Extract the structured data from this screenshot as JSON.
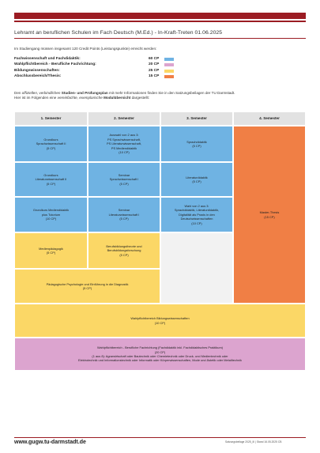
{
  "header": {
    "title": "Lehramt an beruflichen Schulen im Fach Deutsch (M.Ed.) - In-Kraft-Treten 01.06.2025"
  },
  "intro_text": "Im Studiengang müssen insgesamt 120 Credit Points (Leistungspunkte) erreicht werden:",
  "credits": [
    {
      "label": "Fachwissenschaft und Fachdidaktik:",
      "value": "60 CP",
      "color": "#6fb3e3"
    },
    {
      "label": "Wahlpflichtbereich - Berufliche Fachrichtung:",
      "value": "20 CP",
      "color": "#dca4cf"
    },
    {
      "label": "Bildungswissenschaften:",
      "value": "25 CP",
      "color": "#fbd766"
    },
    {
      "label": "Abschlussbereich/Thesis:",
      "value": "15 CP",
      "color": "#f07f45"
    }
  ],
  "note": {
    "p1": "Den ",
    "p2": "offiziellen, verbindlichen",
    "p3": " Studien- und Prüfungsplan",
    "p4": " mit mehr Informationen finden Sie in den Satzungsbeilagen der TU Darmstadt.",
    "p5": "Hier ist im Folgenden eine ",
    "p6": "vereinfachte, exemplarische",
    "p7": " Modulübersicht",
    "p8": " dargestellt:"
  },
  "semesters": [
    "1. Semester",
    "2. Semester",
    "3. Semester",
    "4. Semester"
  ],
  "cells": {
    "grundkurs_sprach": [
      "Grundkurs",
      "Sprachwissenschaft II",
      "(5 CP)"
    ],
    "auswahl": [
      "Auswahl von 2 aus 3:",
      "PS Sprachwissenschaft,",
      "PS Literaturwissenschaft,",
      "PS Mediendidaktik",
      "(10 CP)"
    ],
    "sprachdidaktik": [
      "Sprachdidaktik",
      "(5 CP)"
    ],
    "grundkurs_lit": [
      "Grundkurs",
      "Literaturwissenschaft II",
      "(5 CP)"
    ],
    "seminar_sprach": [
      "Seminar",
      "Sprachwissenschaft I",
      "(5 CP)"
    ],
    "literaturdidaktik": [
      "Literaturdidaktik",
      "(5 CP)"
    ],
    "grundkurs_medien": [
      "Grundkurs Mediendidaktik",
      "plus Tutorium",
      "(10 CP)"
    ],
    "seminar_lit": [
      "Seminar",
      "Literaturwissenschaft I",
      "(5 CP)"
    ],
    "wahl": [
      "Wahl von 2 aus 3:",
      "Sprachdidaktik, Literaturdidaktik,",
      "Digitalität als Praxis in den",
      "Deutschwissenschaften",
      "(10 CP)"
    ],
    "thesis": [
      "Master-Thesis",
      "(15 CP)"
    ],
    "medienpaedagogik": [
      "Medienpädagogik",
      "(5 CP)"
    ],
    "berufsbildung": [
      "Berufsbildungstheorie und",
      "Berufsbildungsforschung",
      "(5 CP)"
    ],
    "paed_psych": [
      "Pädagogische Psychologie und Einführung in die Diagnostik",
      "(5 CP)"
    ],
    "wahlpflicht_bildung": [
      "Wahlpflichtbereich Bildungswissenschaften",
      "(10 CP)"
    ],
    "wahlpflicht_beruf": [
      "Wahlpflichtbereich - Berufliche Fachrichtung (Fachdidaktik inkl. Fachdidaktisches Praktikum)",
      "(20 CP)",
      "(1 aus 8): Agrarwirtschaft oder Bautechnik oder Chemietechnik oder Druck- und Medientechnik oder",
      "Elektrotechnik und Informationstechnik oder Informatik oder Körperwissenschaften, Mode und Ästetik oder Metalltechnik"
    ]
  },
  "footer": {
    "url": "www.gugw.tu-darmstadt.de",
    "meta": "Satzungsbeilage 2025_III   |   Stand 16.05.2025 CB"
  }
}
